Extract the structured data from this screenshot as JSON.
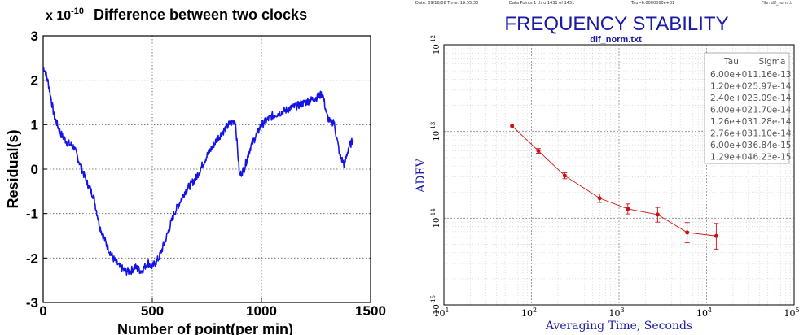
{
  "chart_data": [
    {
      "type": "line",
      "title": "Difference between two clocks",
      "y_multiplier": "x 10",
      "y_multiplier_exp": "-10",
      "xlabel": "Number of point(per min)",
      "ylabel": "Residual(s)",
      "xlim": [
        0,
        1500
      ],
      "ylim": [
        -3,
        3
      ],
      "xticks": [
        "0",
        "500",
        "1000",
        "1500"
      ],
      "yticks": [
        "3",
        "2",
        "1",
        "0",
        "-1",
        "-2",
        "-3"
      ],
      "grid": true,
      "line_color": "#1414e6",
      "series": [
        {
          "x": [
            0,
            10,
            25,
            50,
            80,
            110,
            140,
            170,
            200,
            230,
            260,
            290,
            320,
            350,
            380,
            400,
            420,
            450,
            480,
            500,
            530,
            560,
            600,
            650,
            700,
            750,
            800,
            850,
            880,
            900,
            920,
            950,
            1000,
            1050,
            1100,
            1150,
            1200,
            1250,
            1280,
            1300,
            1320,
            1330,
            1360,
            1380,
            1400,
            1420
          ],
          "y": [
            2.3,
            2.2,
            1.9,
            1.2,
            0.8,
            0.6,
            0.5,
            0.1,
            -0.3,
            -0.6,
            -1.3,
            -1.7,
            -2.0,
            -2.2,
            -2.3,
            -2.3,
            -2.2,
            -2.3,
            -2.1,
            -2.2,
            -2.0,
            -1.6,
            -1.0,
            -0.5,
            -0.2,
            0.3,
            0.7,
            1.0,
            1.1,
            -0.15,
            0.0,
            0.5,
            1.0,
            1.2,
            1.3,
            1.4,
            1.5,
            1.6,
            1.7,
            1.2,
            1.0,
            1.1,
            0.3,
            0.1,
            0.5,
            0.65
          ]
        }
      ]
    },
    {
      "type": "line",
      "header": {
        "date": "Date: 09/16/08  Time: 19:55:30",
        "points": "Data Points 1 thru 1431 of 1431",
        "tau": "Tau=6.0000000e+01",
        "file": "File: dif_norm.t"
      },
      "title": "FREQUENCY STABILITY",
      "subtitle": "dif_norm.txt",
      "xlabel": "Averaging Time, Seconds",
      "ylabel": "ADEV",
      "x_scale": "log",
      "y_scale": "log",
      "xlim": [
        10,
        100000
      ],
      "ylim": [
        1e-15,
        1e-12
      ],
      "xticks": [
        {
          "base": "10",
          "exp": "1"
        },
        {
          "base": "10",
          "exp": "2"
        },
        {
          "base": "10",
          "exp": "3"
        },
        {
          "base": "10",
          "exp": "4"
        },
        {
          "base": "10",
          "exp": "5"
        }
      ],
      "yticks": [
        {
          "base": "10",
          "exp": "-12"
        },
        {
          "base": "10",
          "exp": "-13"
        },
        {
          "base": "10",
          "exp": "-14"
        },
        {
          "base": "10",
          "exp": "-15"
        }
      ],
      "grid": true,
      "title_color": "#1a1aa6",
      "axis_label_color": "#1a1aa6",
      "marker_color": "#cc1111",
      "table": {
        "headers": [
          "Tau",
          "Sigma"
        ],
        "rows": [
          [
            "6.00e+01",
            "1.16e-13"
          ],
          [
            "1.20e+02",
            "5.97e-14"
          ],
          [
            "2.40e+02",
            "3.09e-14"
          ],
          [
            "6.00e+02",
            "1.70e-14"
          ],
          [
            "1.26e+03",
            "1.28e-14"
          ],
          [
            "2.76e+03",
            "1.10e-14"
          ],
          [
            "6.00e+03",
            "6.84e-15"
          ],
          [
            "1.29e+04",
            "6.23e-15"
          ]
        ]
      },
      "series": [
        {
          "x": [
            60,
            120,
            240,
            600,
            1260,
            2760,
            6000,
            12900
          ],
          "y": [
            1.16e-13,
            5.97e-14,
            3.09e-14,
            1.7e-14,
            1.28e-14,
            1.1e-14,
            6.84e-15,
            6.23e-15
          ],
          "err_low": [
            1.1e-13,
            5.6e-14,
            2.85e-14,
            1.52e-14,
            1.12e-14,
            9e-15,
            5.2e-15,
            4.4e-15
          ],
          "err_high": [
            1.22e-13,
            6.35e-14,
            3.35e-14,
            1.9e-14,
            1.46e-14,
            1.33e-14,
            8.9e-15,
            8.7e-15
          ]
        }
      ]
    }
  ]
}
